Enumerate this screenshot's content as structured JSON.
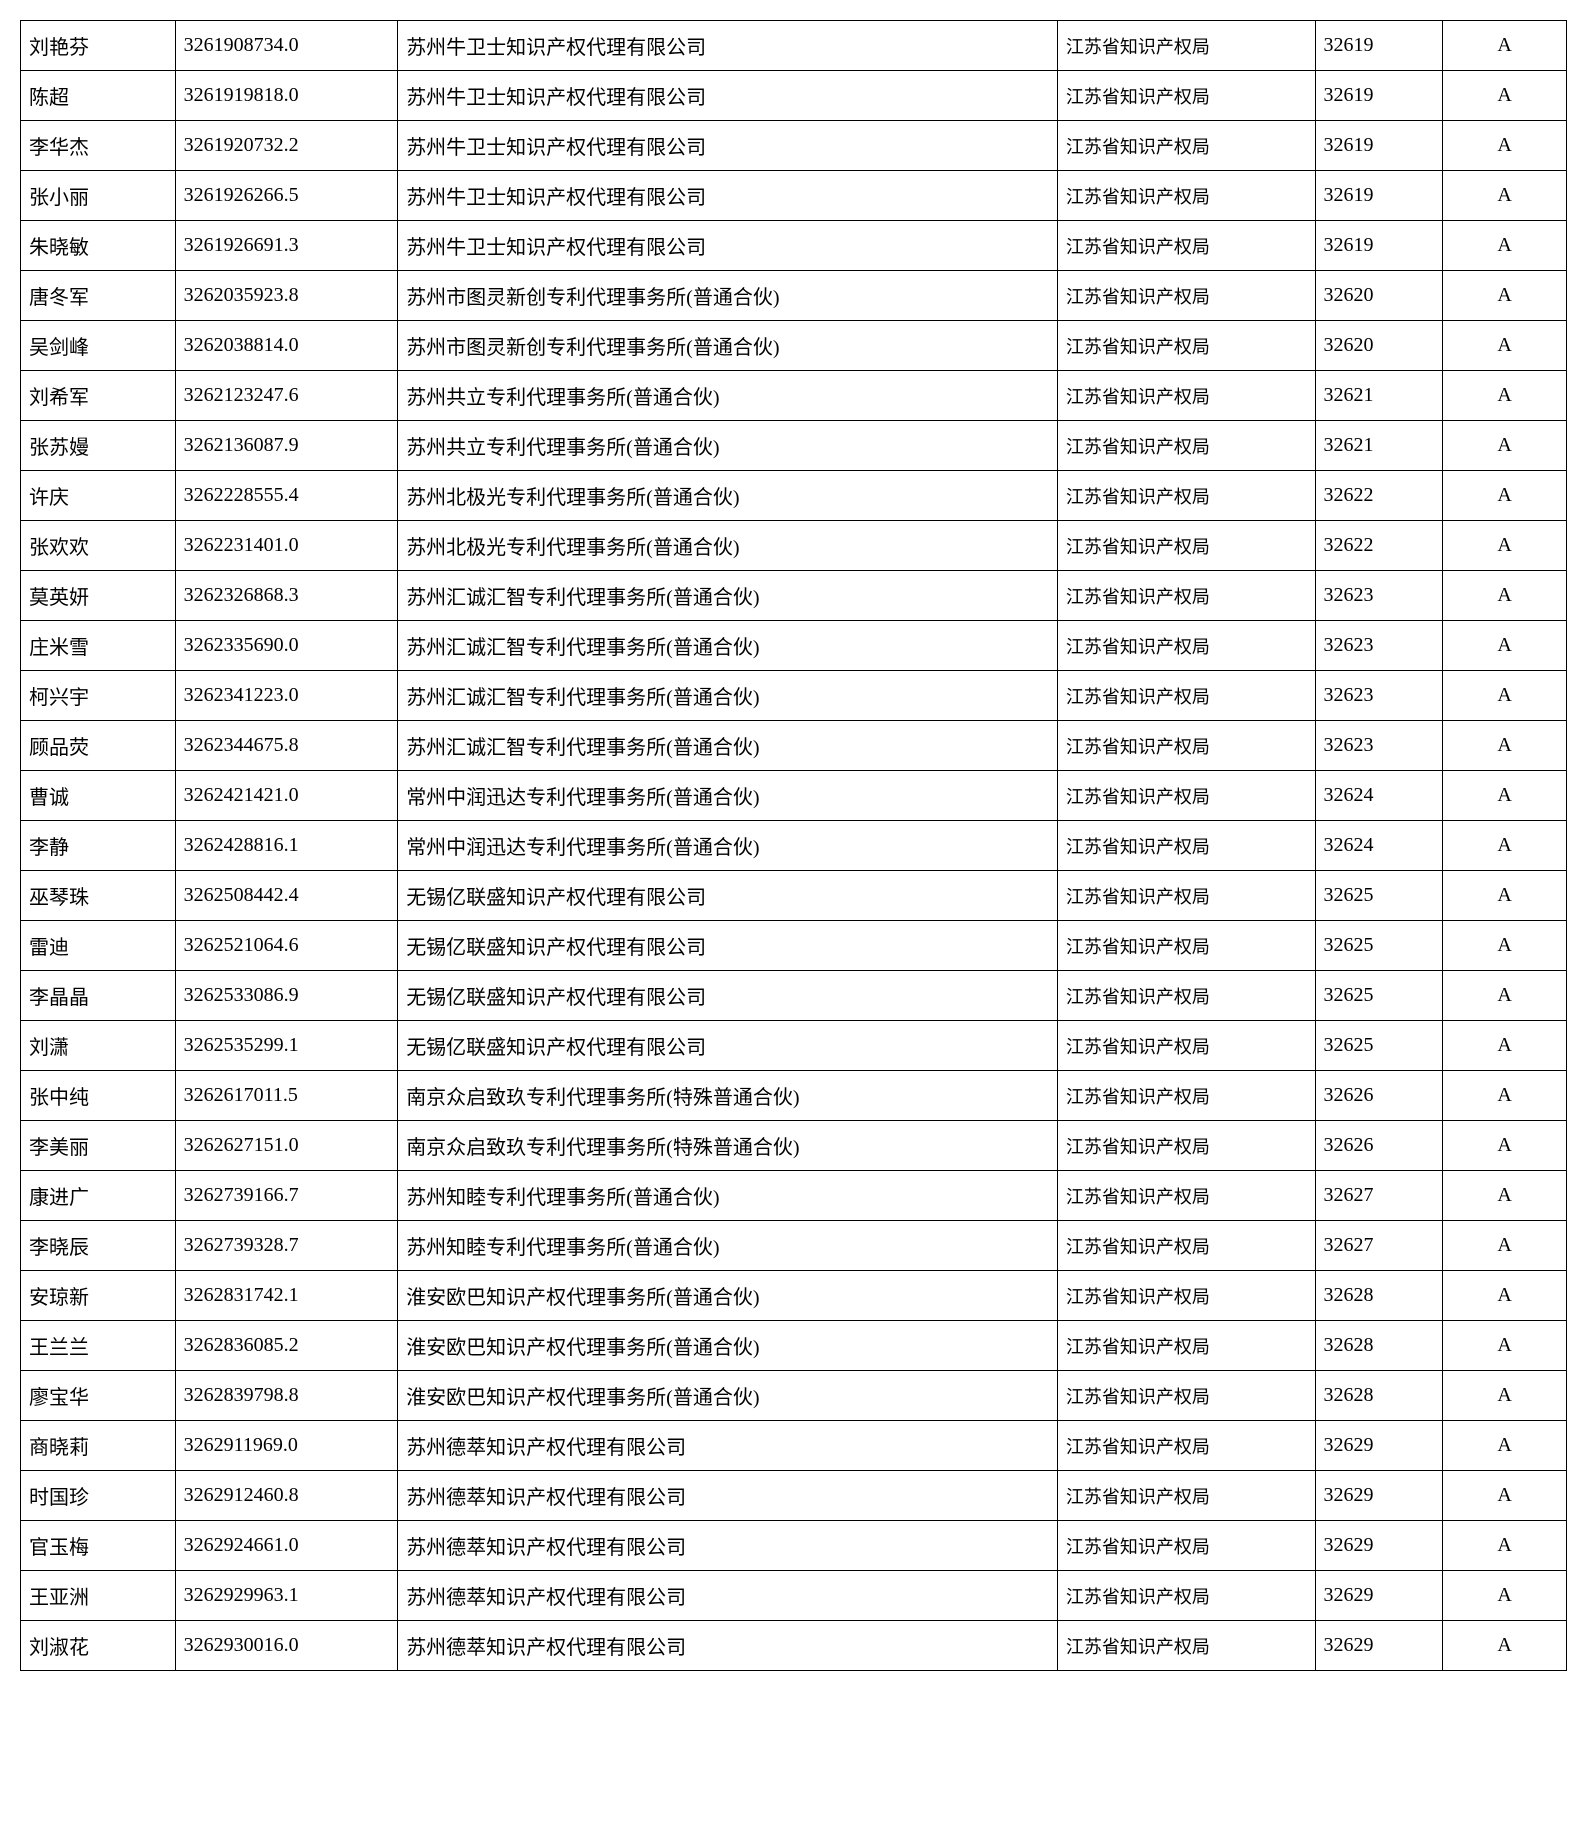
{
  "table": {
    "columns": [
      {
        "key": "name",
        "class": "col-name"
      },
      {
        "key": "id",
        "class": "col-id"
      },
      {
        "key": "company",
        "class": "col-company"
      },
      {
        "key": "bureau",
        "class": "col-bureau"
      },
      {
        "key": "code",
        "class": "col-code"
      },
      {
        "key": "grade",
        "class": "col-grade"
      }
    ],
    "rows": [
      {
        "name": "刘艳芬",
        "id": "3261908734.0",
        "company": "苏州牛卫士知识产权代理有限公司",
        "bureau": "江苏省知识产权局",
        "code": "32619",
        "grade": "A"
      },
      {
        "name": "陈超",
        "id": "3261919818.0",
        "company": "苏州牛卫士知识产权代理有限公司",
        "bureau": "江苏省知识产权局",
        "code": "32619",
        "grade": "A"
      },
      {
        "name": "李华杰",
        "id": "3261920732.2",
        "company": "苏州牛卫士知识产权代理有限公司",
        "bureau": "江苏省知识产权局",
        "code": "32619",
        "grade": "A"
      },
      {
        "name": "张小丽",
        "id": "3261926266.5",
        "company": "苏州牛卫士知识产权代理有限公司",
        "bureau": "江苏省知识产权局",
        "code": "32619",
        "grade": "A"
      },
      {
        "name": "朱晓敏",
        "id": "3261926691.3",
        "company": "苏州牛卫士知识产权代理有限公司",
        "bureau": "江苏省知识产权局",
        "code": "32619",
        "grade": "A"
      },
      {
        "name": "唐冬军",
        "id": "3262035923.8",
        "company": "苏州市图灵新创专利代理事务所(普通合伙)",
        "bureau": "江苏省知识产权局",
        "code": "32620",
        "grade": "A"
      },
      {
        "name": "吴剑峰",
        "id": "3262038814.0",
        "company": "苏州市图灵新创专利代理事务所(普通合伙)",
        "bureau": "江苏省知识产权局",
        "code": "32620",
        "grade": "A"
      },
      {
        "name": "刘希军",
        "id": "3262123247.6",
        "company": "苏州共立专利代理事务所(普通合伙)",
        "bureau": "江苏省知识产权局",
        "code": "32621",
        "grade": "A"
      },
      {
        "name": "张苏嫚",
        "id": "3262136087.9",
        "company": "苏州共立专利代理事务所(普通合伙)",
        "bureau": "江苏省知识产权局",
        "code": "32621",
        "grade": "A"
      },
      {
        "name": "许庆",
        "id": "3262228555.4",
        "company": "苏州北极光专利代理事务所(普通合伙)",
        "bureau": "江苏省知识产权局",
        "code": "32622",
        "grade": "A"
      },
      {
        "name": "张欢欢",
        "id": "3262231401.0",
        "company": "苏州北极光专利代理事务所(普通合伙)",
        "bureau": "江苏省知识产权局",
        "code": "32622",
        "grade": "A"
      },
      {
        "name": "莫英妍",
        "id": "3262326868.3",
        "company": "苏州汇诚汇智专利代理事务所(普通合伙)",
        "bureau": "江苏省知识产权局",
        "code": "32623",
        "grade": "A"
      },
      {
        "name": "庄米雪",
        "id": "3262335690.0",
        "company": "苏州汇诚汇智专利代理事务所(普通合伙)",
        "bureau": "江苏省知识产权局",
        "code": "32623",
        "grade": "A"
      },
      {
        "name": "柯兴宇",
        "id": "3262341223.0",
        "company": "苏州汇诚汇智专利代理事务所(普通合伙)",
        "bureau": "江苏省知识产权局",
        "code": "32623",
        "grade": "A"
      },
      {
        "name": "顾品荧",
        "id": "3262344675.8",
        "company": "苏州汇诚汇智专利代理事务所(普通合伙)",
        "bureau": "江苏省知识产权局",
        "code": "32623",
        "grade": "A"
      },
      {
        "name": "曹诚",
        "id": "3262421421.0",
        "company": "常州中润迅达专利代理事务所(普通合伙)",
        "bureau": "江苏省知识产权局",
        "code": "32624",
        "grade": "A"
      },
      {
        "name": "李静",
        "id": "3262428816.1",
        "company": "常州中润迅达专利代理事务所(普通合伙)",
        "bureau": "江苏省知识产权局",
        "code": "32624",
        "grade": "A"
      },
      {
        "name": "巫琴珠",
        "id": "3262508442.4",
        "company": "无锡亿联盛知识产权代理有限公司",
        "bureau": "江苏省知识产权局",
        "code": "32625",
        "grade": "A"
      },
      {
        "name": "雷迪",
        "id": "3262521064.6",
        "company": "无锡亿联盛知识产权代理有限公司",
        "bureau": "江苏省知识产权局",
        "code": "32625",
        "grade": "A"
      },
      {
        "name": "李晶晶",
        "id": "3262533086.9",
        "company": "无锡亿联盛知识产权代理有限公司",
        "bureau": "江苏省知识产权局",
        "code": "32625",
        "grade": "A"
      },
      {
        "name": "刘潇",
        "id": "3262535299.1",
        "company": "无锡亿联盛知识产权代理有限公司",
        "bureau": "江苏省知识产权局",
        "code": "32625",
        "grade": "A"
      },
      {
        "name": "张中纯",
        "id": "3262617011.5",
        "company": "南京众启致玖专利代理事务所(特殊普通合伙)",
        "bureau": "江苏省知识产权局",
        "code": "32626",
        "grade": "A"
      },
      {
        "name": "李美丽",
        "id": "3262627151.0",
        "company": "南京众启致玖专利代理事务所(特殊普通合伙)",
        "bureau": "江苏省知识产权局",
        "code": "32626",
        "grade": "A"
      },
      {
        "name": "康进广",
        "id": "3262739166.7",
        "company": "苏州知睦专利代理事务所(普通合伙)",
        "bureau": "江苏省知识产权局",
        "code": "32627",
        "grade": "A"
      },
      {
        "name": "李晓辰",
        "id": "3262739328.7",
        "company": "苏州知睦专利代理事务所(普通合伙)",
        "bureau": "江苏省知识产权局",
        "code": "32627",
        "grade": "A"
      },
      {
        "name": "安琼新",
        "id": "3262831742.1",
        "company": "淮安欧巴知识产权代理事务所(普通合伙)",
        "bureau": "江苏省知识产权局",
        "code": "32628",
        "grade": "A"
      },
      {
        "name": "王兰兰",
        "id": "3262836085.2",
        "company": "淮安欧巴知识产权代理事务所(普通合伙)",
        "bureau": "江苏省知识产权局",
        "code": "32628",
        "grade": "A"
      },
      {
        "name": "廖宝华",
        "id": "3262839798.8",
        "company": "淮安欧巴知识产权代理事务所(普通合伙)",
        "bureau": "江苏省知识产权局",
        "code": "32628",
        "grade": "A"
      },
      {
        "name": "商晓莉",
        "id": "3262911969.0",
        "company": "苏州德萃知识产权代理有限公司",
        "bureau": "江苏省知识产权局",
        "code": "32629",
        "grade": "A"
      },
      {
        "name": "时国珍",
        "id": "3262912460.8",
        "company": "苏州德萃知识产权代理有限公司",
        "bureau": "江苏省知识产权局",
        "code": "32629",
        "grade": "A"
      },
      {
        "name": "官玉梅",
        "id": "3262924661.0",
        "company": "苏州德萃知识产权代理有限公司",
        "bureau": "江苏省知识产权局",
        "code": "32629",
        "grade": "A"
      },
      {
        "name": "王亚洲",
        "id": "3262929963.1",
        "company": "苏州德萃知识产权代理有限公司",
        "bureau": "江苏省知识产权局",
        "code": "32629",
        "grade": "A"
      },
      {
        "name": "刘淑花",
        "id": "3262930016.0",
        "company": "苏州德萃知识产权代理有限公司",
        "bureau": "江苏省知识产权局",
        "code": "32629",
        "grade": "A"
      }
    ],
    "border_color": "#000000",
    "background_color": "#ffffff",
    "text_color": "#000000",
    "font_size": 20,
    "bureau_font_size": 18
  }
}
